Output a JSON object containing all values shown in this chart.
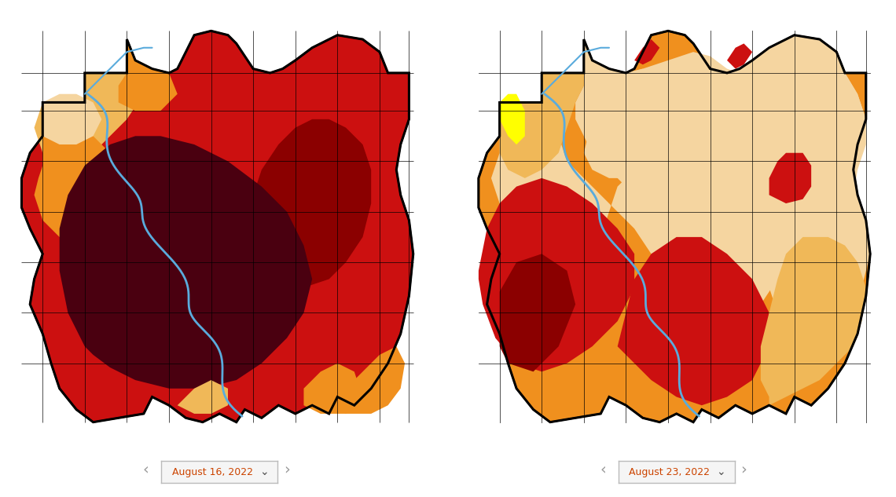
{
  "map1_date": "August 16, 2022",
  "map2_date": "August 23, 2022",
  "background_color": "#ffffff",
  "colors": {
    "yellow": "#FFFF00",
    "light_peach": "#F5D5A0",
    "peach": "#F0B858",
    "orange": "#F0901E",
    "red": "#CC1010",
    "dark_red": "#8B0000",
    "maroon": "#4A0010",
    "river_blue": "#5AABDC"
  },
  "figure_width": 11.4,
  "figure_height": 6.33,
  "nav_arrow_color": "#999999",
  "dropdown_border": "#bbbbbb",
  "dropdown_text_color": "#cc4400"
}
